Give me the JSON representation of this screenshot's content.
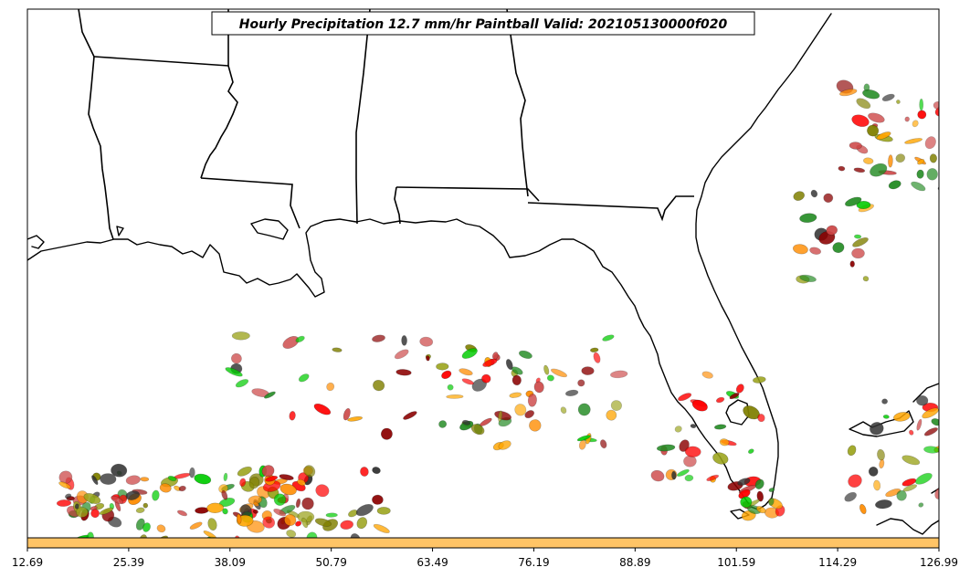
{
  "title": "Hourly Precipitation 12.7 mm/hr Paintball Valid: 202105130000f020",
  "colorbar": {
    "color": "#ffc466",
    "tick_labels": [
      "12.69",
      "25.39",
      "38.09",
      "50.79",
      "63.49",
      "76.19",
      "88.89",
      "101.59",
      "114.29",
      "126.99"
    ]
  },
  "map": {
    "region": "Southeastern United States / Gulf of Mexico",
    "projection": "lat-lon",
    "features": [
      "coastlines",
      "state boundaries"
    ],
    "member_colors": [
      "#ff0000",
      "#8b0000",
      "#ff8c00",
      "#ffa500",
      "#00cc00",
      "#228b22",
      "#808000",
      "#9aa31a",
      "#333333",
      "#cc4444"
    ]
  }
}
